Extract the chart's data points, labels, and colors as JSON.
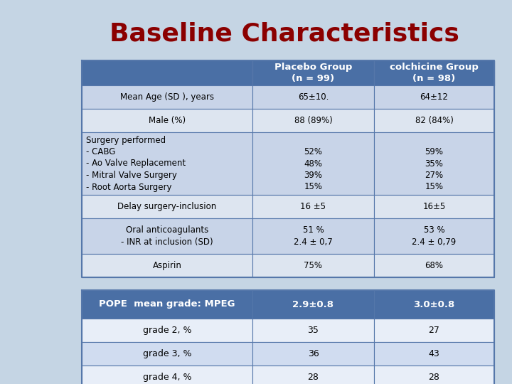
{
  "title": "Baseline Characteristics",
  "title_color": "#8B0000",
  "background_color": "#C5D5E4",
  "header_bg": "#4A6FA5",
  "header_text_color": "#FFFFFF",
  "header_col1": "Placebo Group\n(n = 99)",
  "header_col2": "colchicine Group\n(n = 98)",
  "rows_upper": [
    {
      "label": "Mean Age (SD ), years",
      "col1": "65±10.",
      "col2": "64±12",
      "label_align": "center",
      "alt": true
    },
    {
      "label": "Male (%)",
      "col1": "88 (89%)",
      "col2": "82 (84%)",
      "label_align": "center",
      "alt": false
    },
    {
      "label": "Surgery performed\n- CABG\n- Ao Valve Replacement\n- Mitral Valve Surgery\n- Root Aorta Surgery",
      "col1": "\n52%\n48%\n39%\n15%",
      "col2": "\n59%\n35%\n27%\n15%",
      "label_align": "left",
      "alt": true
    },
    {
      "label": "Delay surgery-inclusion",
      "col1": "16 ±5",
      "col2": "16±5",
      "label_align": "center",
      "alt": false
    },
    {
      "label": "Oral anticoagulants\n- INR at inclusion (SD)",
      "col1": "51 %\n2.4 ± 0,7",
      "col2": "53 %\n2.4 ± 0,79",
      "label_align": "center",
      "alt": true
    },
    {
      "label": "Aspirin",
      "col1": "75%",
      "col2": "68%",
      "label_align": "center",
      "alt": false
    }
  ],
  "rows_lower": [
    {
      "label": "POPE  mean grade: MPEG",
      "col1": "2.9±0.8",
      "col2": "3.0±0.8",
      "label_bg": "#4A6FA5",
      "label_color": "#FFFFFF",
      "val_bg": "#4A6FA5",
      "val_color": "#FFFFFF",
      "bold": true
    },
    {
      "label": "grade 2, %",
      "col1": "35",
      "col2": "27",
      "label_bg": "#E8EEF8",
      "label_color": "#000000",
      "val_bg": "#E8EEF8",
      "val_color": "#000000",
      "bold": false
    },
    {
      "label": "grade 3, %",
      "col1": "36",
      "col2": "43",
      "label_bg": "#D0DCF0",
      "label_color": "#000000",
      "val_bg": "#D0DCF0",
      "val_color": "#000000",
      "bold": false
    },
    {
      "label": "grade 4, %",
      "col1": "28",
      "col2": "28",
      "label_bg": "#E8EEF8",
      "label_color": "#000000",
      "val_bg": "#E8EEF8",
      "val_color": "#000000",
      "bold": false
    }
  ],
  "upper_alt_color": "#C8D4E8",
  "upper_white_color": "#DDE5F0",
  "border_color": "#5577AA",
  "font_size_title": 26,
  "font_size_header": 9.5,
  "font_size_body": 8.5,
  "font_size_lower_header": 9.5,
  "font_size_lower_body": 9
}
